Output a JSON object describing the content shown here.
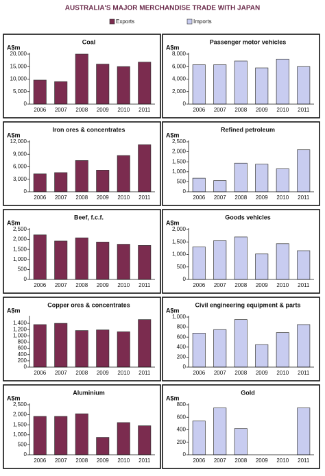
{
  "title": "AUSTRALIA'S MAJOR MERCHANDISE TRADE WITH JAPAN",
  "chart_data": [
    {
      "type": "bar",
      "title": "Coal",
      "y_label": "A$m",
      "categories": [
        "2006",
        "2007",
        "2008",
        "2009",
        "2010",
        "2011"
      ],
      "series": [
        {
          "name": "Exports",
          "color": "#7b2c4f",
          "values": [
            9600,
            9000,
            20000,
            16000,
            15000,
            16800
          ]
        }
      ],
      "ylim": [
        0,
        20000
      ],
      "yticks": [
        0,
        {
          "value": 5000,
          "label": "5,000"
        },
        {
          "value": 10000,
          "label": "10,000"
        },
        {
          "value": 15000,
          "label": "15,000"
        },
        {
          "value": 20000,
          "label": "20,000"
        }
      ]
    },
    {
      "type": "bar",
      "title": "Passenger motor vehicles",
      "y_label": "A$m",
      "categories": [
        "2006",
        "2007",
        "2008",
        "2009",
        "2010",
        "2011"
      ],
      "series": [
        {
          "name": "Imports",
          "color": "#c8ccf0",
          "values": [
            6300,
            6300,
            6900,
            5800,
            7200,
            6000
          ]
        }
      ],
      "ylim": [
        0,
        8000
      ],
      "yticks": [
        0,
        {
          "value": 2000,
          "label": "2,000"
        },
        {
          "value": 4000,
          "label": "4,000"
        },
        {
          "value": 6000,
          "label": "6,000"
        },
        {
          "value": 8000,
          "label": "8,000"
        }
      ]
    },
    {
      "type": "bar",
      "title": "Iron ores & concentrates",
      "y_label": "A$m",
      "categories": [
        "2006",
        "2007",
        "2008",
        "2009",
        "2010",
        "2011"
      ],
      "series": [
        {
          "name": "Exports",
          "color": "#7b2c4f",
          "values": [
            4300,
            4600,
            7500,
            5200,
            8700,
            11300
          ]
        }
      ],
      "ylim": [
        0,
        12000
      ],
      "yticks": [
        0,
        {
          "value": 3000,
          "label": "3,000"
        },
        {
          "value": 6000,
          "label": "6,000"
        },
        {
          "value": 9000,
          "label": "9,000"
        },
        {
          "value": 12000,
          "label": "12,000"
        }
      ]
    },
    {
      "type": "bar",
      "title": "Refined petroleum",
      "y_label": "A$m",
      "categories": [
        "2006",
        "2007",
        "2008",
        "2009",
        "2010",
        "2011"
      ],
      "series": [
        {
          "name": "Imports",
          "color": "#c8ccf0",
          "values": [
            680,
            560,
            1430,
            1380,
            1150,
            2100
          ]
        }
      ],
      "ylim": [
        0,
        2500
      ],
      "yticks": [
        0,
        500,
        {
          "value": 1000,
          "label": "1,000"
        },
        {
          "value": 1500,
          "label": "1,500"
        },
        {
          "value": 2000,
          "label": "2,000"
        },
        {
          "value": 2500,
          "label": "2,500"
        }
      ]
    },
    {
      "type": "bar",
      "title": "Beef, f.c.f.",
      "y_label": "A$m",
      "categories": [
        "2006",
        "2007",
        "2008",
        "2009",
        "2010",
        "2011"
      ],
      "series": [
        {
          "name": "Exports",
          "color": "#7b2c4f",
          "values": [
            2230,
            1920,
            2080,
            1870,
            1760,
            1700
          ]
        }
      ],
      "ylim": [
        0,
        2500
      ],
      "yticks": [
        0,
        500,
        {
          "value": 1000,
          "label": "1,000"
        },
        {
          "value": 1500,
          "label": "1,500"
        },
        {
          "value": 2000,
          "label": "2,000"
        },
        {
          "value": 2500,
          "label": "2,500"
        }
      ]
    },
    {
      "type": "bar",
      "title": "Goods vehicles",
      "y_label": "A$m",
      "categories": [
        "2006",
        "2007",
        "2008",
        "2009",
        "2010",
        "2011"
      ],
      "series": [
        {
          "name": "Imports",
          "color": "#c8ccf0",
          "values": [
            1300,
            1550,
            1700,
            1020,
            1430,
            1150
          ]
        }
      ],
      "ylim": [
        0,
        2000
      ],
      "yticks": [
        0,
        500,
        {
          "value": 1000,
          "label": "1,000"
        },
        {
          "value": 1500,
          "label": "1,500"
        },
        {
          "value": 2000,
          "label": "2,000"
        }
      ]
    },
    {
      "type": "bar",
      "title": "Copper ores & concentrates",
      "y_label": "A$m",
      "categories": [
        "2006",
        "2007",
        "2008",
        "2009",
        "2010",
        "2011"
      ],
      "series": [
        {
          "name": "Exports",
          "color": "#7b2c4f",
          "values": [
            1360,
            1400,
            1170,
            1190,
            1130,
            1520
          ]
        }
      ],
      "ylim": [
        0,
        1600
      ],
      "yticks": [
        0,
        200,
        400,
        600,
        800,
        {
          "value": 1000,
          "label": "1,000"
        },
        {
          "value": 1200,
          "label": "1,200"
        },
        {
          "value": 1400,
          "label": "1,400"
        }
      ]
    },
    {
      "type": "bar",
      "title": "Civil engineering equipment & parts",
      "y_label": "A$m",
      "categories": [
        "2006",
        "2007",
        "2008",
        "2009",
        "2010",
        "2011"
      ],
      "series": [
        {
          "name": "Imports",
          "color": "#c8ccf0",
          "values": [
            680,
            750,
            950,
            450,
            690,
            850
          ]
        }
      ],
      "ylim": [
        0,
        1000
      ],
      "yticks": [
        0,
        200,
        400,
        600,
        800,
        {
          "value": 1000,
          "label": "1,000"
        }
      ]
    },
    {
      "type": "bar",
      "title": "Aluminium",
      "y_label": "A$m",
      "categories": [
        "2006",
        "2007",
        "2008",
        "2009",
        "2010",
        "2011"
      ],
      "series": [
        {
          "name": "Exports",
          "color": "#7b2c4f",
          "values": [
            1920,
            1920,
            2050,
            870,
            1610,
            1450
          ]
        }
      ],
      "ylim": [
        0,
        2500
      ],
      "yticks": [
        0,
        500,
        {
          "value": 1000,
          "label": "1,000"
        },
        {
          "value": 1500,
          "label": "1,500"
        },
        {
          "value": 2000,
          "label": "2,000"
        },
        {
          "value": 2500,
          "label": "2,500"
        }
      ]
    },
    {
      "type": "bar",
      "title": "Gold",
      "y_label": "A$m",
      "categories": [
        "2006",
        "2007",
        "2008",
        "2009",
        "2010",
        "2011"
      ],
      "series": [
        {
          "name": "Imports",
          "color": "#c8ccf0",
          "values": [
            540,
            750,
            420,
            null,
            null,
            750
          ]
        }
      ],
      "ylim": [
        0,
        800
      ],
      "yticks": [
        0,
        200,
        400,
        600,
        800
      ]
    }
  ]
}
